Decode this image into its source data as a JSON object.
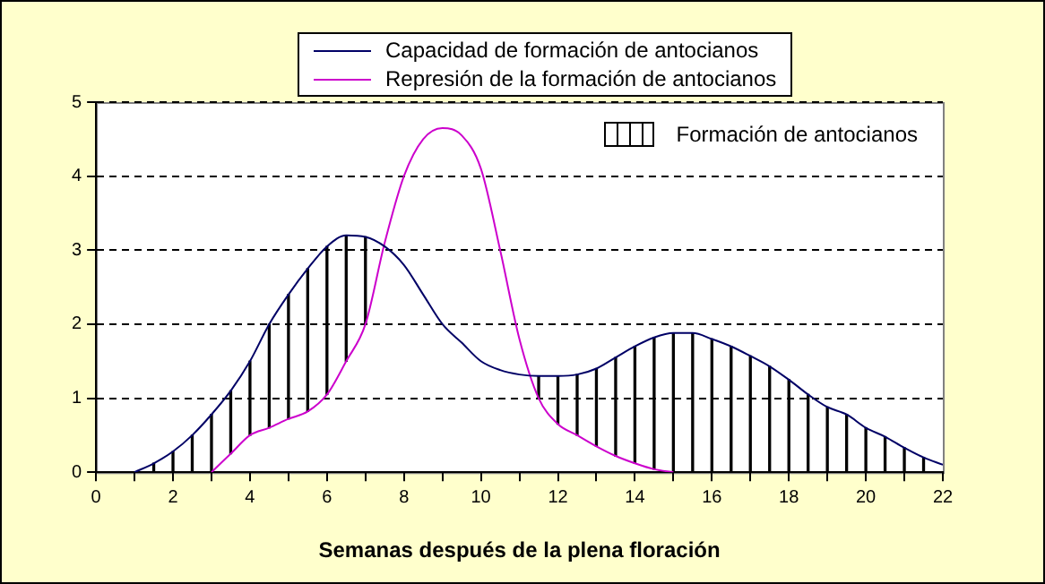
{
  "chart_data": {
    "type": "line",
    "xlabel": "Semanas después de la plena floración",
    "xlim": [
      0,
      22
    ],
    "xticks": [
      0,
      {
        "value": 1,
        "label": null
      },
      2,
      {
        "value": 3,
        "label": null
      },
      4,
      {
        "value": 5,
        "label": null
      },
      6,
      {
        "value": 7,
        "label": null
      },
      8,
      {
        "value": 9,
        "label": null
      },
      10,
      {
        "value": 11,
        "label": null
      },
      12,
      {
        "value": 13,
        "label": null
      },
      14,
      {
        "value": 15,
        "label": null
      },
      16,
      {
        "value": 17,
        "label": null
      },
      18,
      {
        "value": 19,
        "label": null
      },
      20,
      {
        "value": 21,
        "label": null
      },
      22
    ],
    "ylim": [
      0,
      5
    ],
    "yticks": [
      0,
      1,
      2,
      3,
      4,
      5
    ],
    "grid": "y",
    "legend": "top",
    "marker": "none",
    "line_style": "solid",
    "series": [
      {
        "name": "Capacidad de formación de antocianos",
        "color": "#000066",
        "x": [
          1,
          1.5,
          2,
          2.5,
          3,
          3.5,
          4,
          4.5,
          5,
          5.5,
          6,
          6.5,
          7,
          7.5,
          8,
          8.5,
          9,
          9.5,
          10,
          10.5,
          11,
          11.5,
          12,
          12.5,
          13,
          13.5,
          14,
          14.5,
          15,
          15.5,
          16,
          16.5,
          17,
          17.5,
          18,
          18.5,
          19,
          19.5,
          20,
          20.5,
          21,
          21.5,
          22
        ],
        "values": [
          0,
          0.12,
          0.28,
          0.5,
          0.78,
          1.1,
          1.5,
          2.0,
          2.4,
          2.75,
          3.05,
          3.2,
          3.18,
          3.05,
          2.8,
          2.4,
          2.0,
          1.75,
          1.5,
          1.38,
          1.32,
          1.3,
          1.3,
          1.32,
          1.4,
          1.55,
          1.7,
          1.82,
          1.88,
          1.88,
          1.8,
          1.7,
          1.57,
          1.43,
          1.25,
          1.05,
          0.88,
          0.78,
          0.6,
          0.48,
          0.33,
          0.2,
          0.1
        ]
      },
      {
        "name": "Represión de la formación de antocianos",
        "color": "#cc00cc",
        "x": [
          3,
          3.5,
          4,
          4.5,
          5,
          5.5,
          6,
          6.5,
          7,
          7.5,
          8,
          8.5,
          9,
          9.5,
          10,
          10.5,
          11,
          11.5,
          12,
          12.5,
          13,
          13.5,
          14,
          14.5,
          15
        ],
        "values": [
          0,
          0.25,
          0.5,
          0.6,
          0.72,
          0.82,
          1.05,
          1.5,
          2.0,
          3.1,
          4.0,
          4.5,
          4.65,
          4.55,
          4.1,
          3.0,
          1.8,
          1.0,
          0.65,
          0.5,
          0.35,
          0.22,
          0.12,
          0.04,
          0
        ]
      },
      {
        "name": "Formación de antocianos",
        "type": "bar",
        "color": "#000000",
        "x": [
          1.5,
          2,
          2.5,
          3,
          3.5,
          4,
          4.5,
          5,
          5.5,
          6,
          6.5,
          7,
          11.5,
          12,
          12.5,
          13,
          13.5,
          14,
          14.5,
          15,
          15.5,
          16,
          16.5,
          17,
          17.5,
          18,
          18.5,
          19,
          19.5,
          20,
          20.5,
          21,
          21.5
        ],
        "base": [
          0,
          0,
          0,
          0,
          0.25,
          0.5,
          0.6,
          0.72,
          0.82,
          1.05,
          1.5,
          2.0,
          1.0,
          0.65,
          0.5,
          0.35,
          0.22,
          0.12,
          0.04,
          0,
          0,
          0,
          0,
          0,
          0,
          0,
          0,
          0,
          0,
          0,
          0,
          0,
          0
        ],
        "values": [
          0.12,
          0.28,
          0.5,
          0.78,
          0.85,
          1.0,
          1.4,
          1.68,
          1.93,
          2.0,
          1.7,
          1.18,
          0.3,
          0.65,
          0.82,
          1.05,
          1.33,
          1.58,
          1.78,
          1.88,
          1.88,
          1.8,
          1.7,
          1.57,
          1.43,
          1.25,
          1.05,
          0.88,
          0.78,
          0.6,
          0.48,
          0.33,
          0.2
        ]
      }
    ]
  }
}
